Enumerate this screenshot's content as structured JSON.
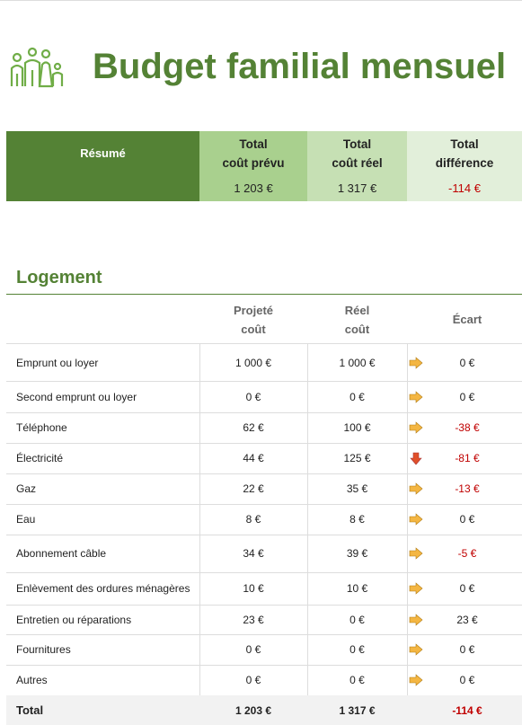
{
  "header": {
    "title": "Budget familial mensuel"
  },
  "summary": {
    "label": "Résumé",
    "columns": [
      {
        "line1": "Total",
        "line2": "coût prévu",
        "value": "1 203 €"
      },
      {
        "line1": "Total",
        "line2": "coût réel",
        "value": "1 317 €"
      },
      {
        "line1": "Total",
        "line2": "différence",
        "value": "-114 €"
      }
    ]
  },
  "section": {
    "title": "Logement",
    "headers": [
      [
        "Projeté",
        "coût"
      ],
      [
        "Réel",
        "coût"
      ],
      [
        "Écart"
      ]
    ],
    "rows": [
      [
        "Emprunt ou loyer",
        "1 000 €",
        "1 000 €",
        "0 €"
      ],
      [
        "Second emprunt ou loyer",
        "0 €",
        "0 €",
        "0 €"
      ],
      [
        "Téléphone",
        "62 €",
        "100 €",
        "-38 €"
      ],
      [
        "Électricité",
        "44 €",
        "125 €",
        "-81 €"
      ],
      [
        "Gaz",
        "22 €",
        "35 €",
        "-13 €"
      ],
      [
        "Eau",
        "8 €",
        "8 €",
        "0 €"
      ],
      [
        "Abonnement câble",
        "34 €",
        "39 €",
        "-5 €"
      ],
      [
        "Enlèvement des ordures ménagères",
        "10 €",
        "10 €",
        "0 €"
      ],
      [
        "Entretien ou réparations",
        "23 €",
        "0 €",
        "23 €"
      ],
      [
        "Fournitures",
        "0 €",
        "0 €",
        "0 €"
      ],
      [
        "Autres",
        "0 €",
        "0 €",
        "0 €"
      ]
    ],
    "total": [
      "Total",
      "1 203 €",
      "1 317 €",
      "-114 €"
    ]
  }
}
